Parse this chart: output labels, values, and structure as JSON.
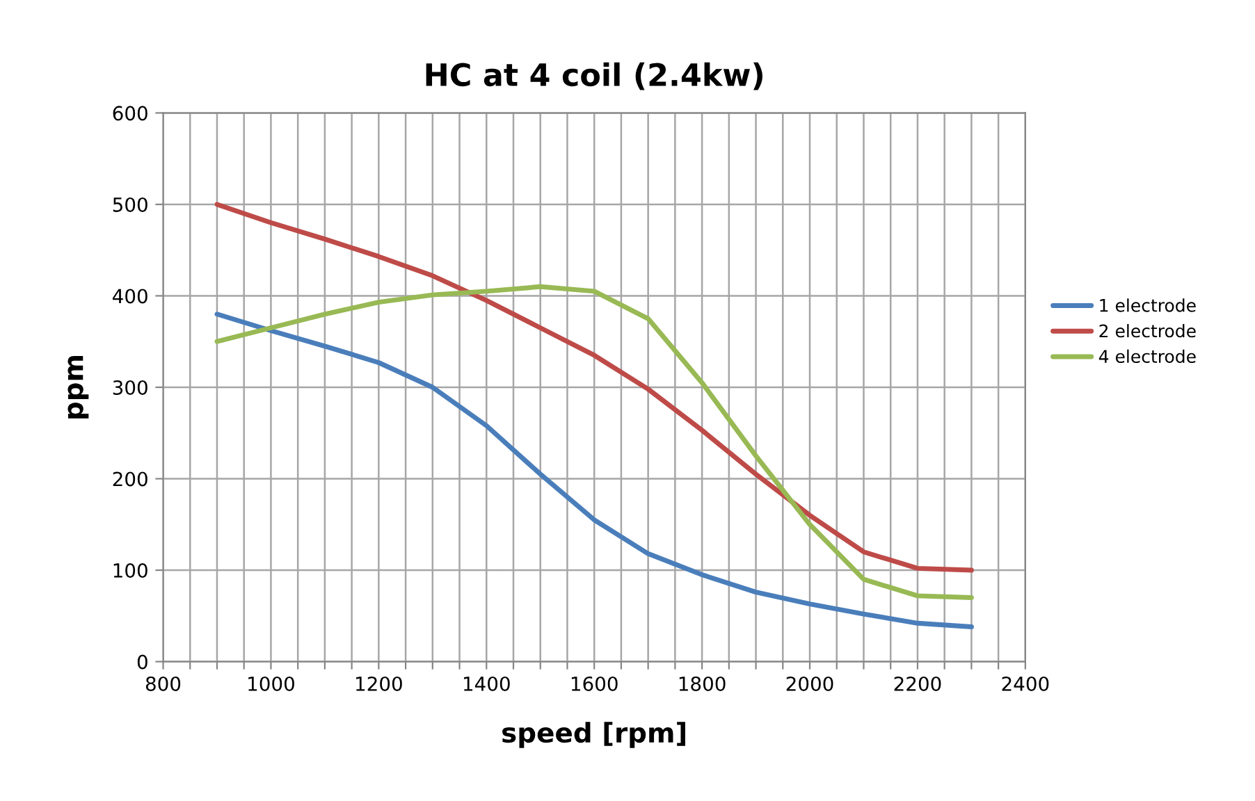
{
  "chart_data": {
    "type": "line",
    "title": "HC at 4 coil (2.4kw)",
    "xlabel": "speed [rpm]",
    "ylabel": "ppm",
    "x": [
      900,
      1000,
      1100,
      1200,
      1300,
      1400,
      1500,
      1600,
      1700,
      1800,
      1900,
      2000,
      2100,
      2200,
      2300
    ],
    "series": [
      {
        "name": "1 electrode",
        "color": "#4a7ebb",
        "values": [
          380,
          362,
          345,
          327,
          300,
          258,
          205,
          155,
          118,
          95,
          76,
          63,
          52,
          42,
          38
        ]
      },
      {
        "name": "2 electrode",
        "color": "#be4b48",
        "values": [
          500,
          480,
          462,
          443,
          422,
          395,
          365,
          335,
          298,
          253,
          205,
          160,
          120,
          102,
          100
        ]
      },
      {
        "name": "4 electrode",
        "color": "#98b954",
        "values": [
          350,
          365,
          380,
          393,
          401,
          405,
          410,
          405,
          375,
          305,
          225,
          150,
          90,
          72,
          70
        ]
      }
    ],
    "xlim": [
      800,
      2400
    ],
    "xticks": [
      800,
      {
        "value": 850,
        "label": null
      },
      {
        "value": 900,
        "label": null
      },
      {
        "value": 950,
        "label": null
      },
      1000,
      {
        "value": 1050,
        "label": null
      },
      {
        "value": 1100,
        "label": null
      },
      {
        "value": 1150,
        "label": null
      },
      1200,
      {
        "value": 1250,
        "label": null
      },
      {
        "value": 1300,
        "label": null
      },
      {
        "value": 1350,
        "label": null
      },
      1400,
      {
        "value": 1450,
        "label": null
      },
      {
        "value": 1500,
        "label": null
      },
      {
        "value": 1550,
        "label": null
      },
      1600,
      {
        "value": 1650,
        "label": null
      },
      {
        "value": 1700,
        "label": null
      },
      {
        "value": 1750,
        "label": null
      },
      1800,
      {
        "value": 1850,
        "label": null
      },
      {
        "value": 1900,
        "label": null
      },
      {
        "value": 1950,
        "label": null
      },
      2000,
      {
        "value": 2050,
        "label": null
      },
      {
        "value": 2100,
        "label": null
      },
      {
        "value": 2150,
        "label": null
      },
      2200,
      {
        "value": 2250,
        "label": null
      },
      {
        "value": 2300,
        "label": null
      },
      {
        "value": 2350,
        "label": null
      },
      2400
    ],
    "ylim": [
      0,
      600
    ],
    "yticks": [
      0,
      100,
      200,
      300,
      400,
      500,
      600
    ],
    "grid": true,
    "legend": "right",
    "marker": "none",
    "line_style": "solid"
  }
}
